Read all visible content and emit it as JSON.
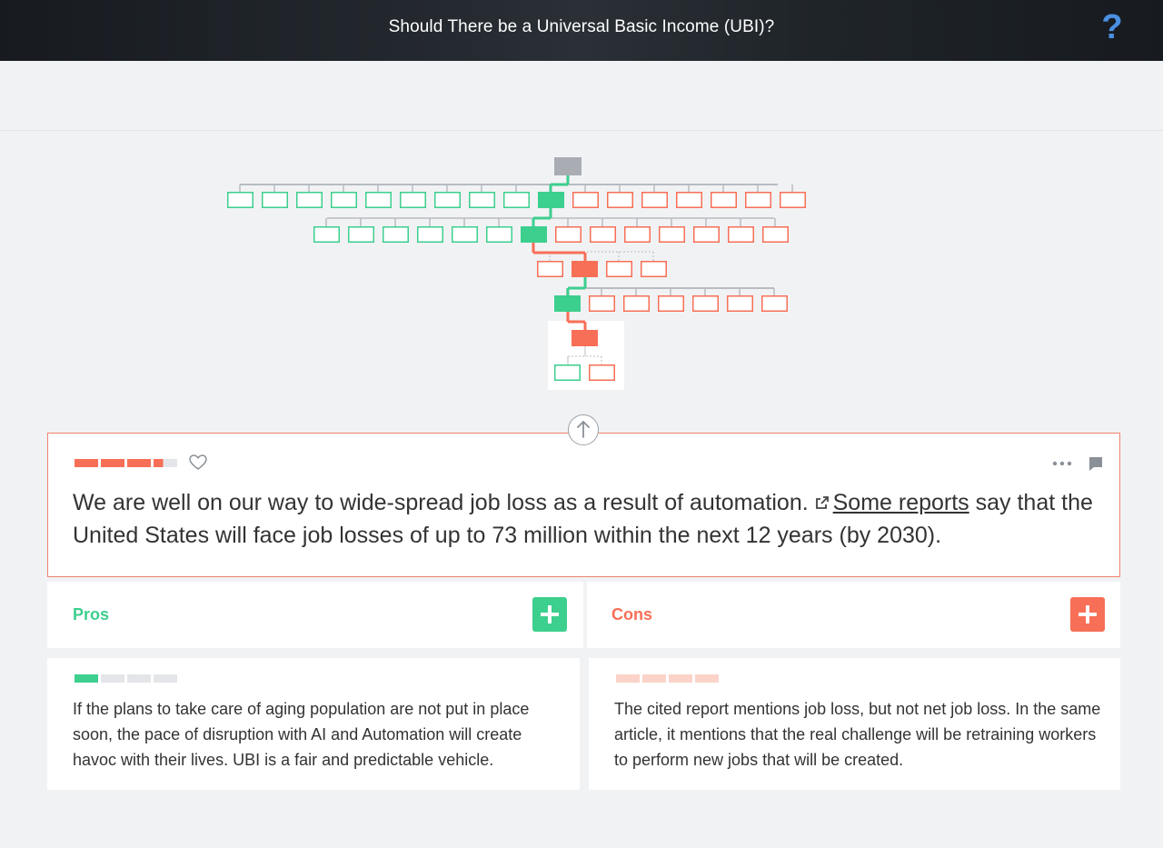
{
  "header": {
    "title": "Should There be a Universal Basic Income (UBI)?",
    "help_label": "?"
  },
  "colors": {
    "pro": "#3ccf8e",
    "con": "#f76f56",
    "root": "#a9adb3",
    "accent_blue": "#4a90e2"
  },
  "claim": {
    "impact_score_fraction": 0.85,
    "text_before_link": "We are well on our way to wide-spread job loss as a result of automation. ",
    "link_text": "Some reports",
    "text_after_link": " say that the United States will face job losses of up to 73 million within the next 12 years (by 2030).",
    "icons": [
      "arrow-up-icon",
      "heart-icon",
      "more-options-icon",
      "comment-icon",
      "external-link-icon"
    ]
  },
  "columns": {
    "pros_label": "Pros",
    "cons_label": "Cons"
  },
  "pros": [
    {
      "impact_score_fraction": 0.25,
      "text": "If the plans to take care of aging population are not put in place soon, the pace of disruption with AI and Automation will create havoc with their lives. UBI is a fair and predictable vehicle."
    }
  ],
  "cons": [
    {
      "impact_score_fraction": 0.0,
      "text": "The cited report mentions job loss, but not net job loss. In the same article, it mentions that the real challenge will be retraining workers to perform new jobs that will be created."
    }
  ]
}
